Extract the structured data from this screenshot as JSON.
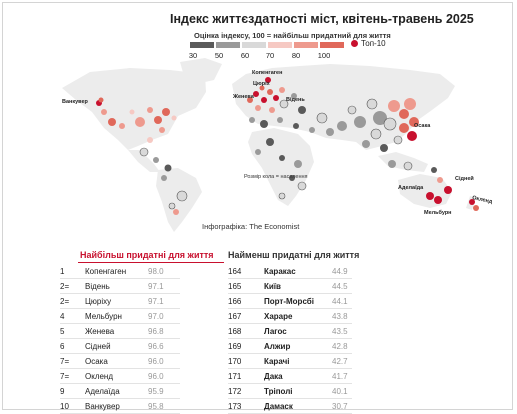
{
  "header": {
    "title": "Індекс життєздатності міст, квітень-травень 2025"
  },
  "legend": {
    "title": "Оцінка індексу, 100 = найбільш придатний для життя",
    "ticks": [
      "30",
      "50",
      "60",
      "70",
      "80",
      "100"
    ],
    "colors": [
      "#5a5a5a",
      "#9a9a9a",
      "#d9d9d9",
      "#f6c9c3",
      "#ee9a8e",
      "#e0685a"
    ],
    "top10_label": "Топ-10",
    "top10_color": "#c8102e"
  },
  "map": {
    "land_color": "#efefef",
    "labels": {
      "vancouver": "Ванкувер",
      "copenhagen": "Копенгаген",
      "zurich": "Цюріх",
      "geneva": "Женева",
      "vienna": "Відень",
      "osaka": "Осака",
      "sydney": "Сідней",
      "adelaide": "Аделаїда",
      "melbourne": "Мельбурн",
      "auckland": "Окленд"
    },
    "size_note": "Розмір кола = населення"
  },
  "credit": "Інфографіка: The Economist",
  "rankings": {
    "best_title": "Найбільш придатні для життя",
    "worst_title": "Найменш придатні для життя",
    "best": [
      {
        "rank": "1",
        "city": "Копенгаген",
        "score": "98.0"
      },
      {
        "rank": "2=",
        "city": "Відень",
        "score": "97.1"
      },
      {
        "rank": "2=",
        "city": "Цюріху",
        "score": "97.1"
      },
      {
        "rank": "4",
        "city": "Мельбурн",
        "score": "97.0"
      },
      {
        "rank": "5",
        "city": "Женева",
        "score": "96.8"
      },
      {
        "rank": "6",
        "city": "Сідней",
        "score": "96.6"
      },
      {
        "rank": "7=",
        "city": "Осака",
        "score": "96.0"
      },
      {
        "rank": "7=",
        "city": "Окленд",
        "score": "96.0"
      },
      {
        "rank": "9",
        "city": "Аделаїда",
        "score": "95.9"
      },
      {
        "rank": "10",
        "city": "Ванкувер",
        "score": "95.8"
      }
    ],
    "worst": [
      {
        "rank": "164",
        "city": "Каракас",
        "score": "44.9"
      },
      {
        "rank": "165",
        "city": "Київ",
        "score": "44.5"
      },
      {
        "rank": "166",
        "city": "Порт-Морсбі",
        "score": "44.1"
      },
      {
        "rank": "167",
        "city": "Хараре",
        "score": "43.8"
      },
      {
        "rank": "168",
        "city": "Лагос",
        "score": "43.5"
      },
      {
        "rank": "169",
        "city": "Алжир",
        "score": "42.8"
      },
      {
        "rank": "170",
        "city": "Карачі",
        "score": "42.7"
      },
      {
        "rank": "171",
        "city": "Дака",
        "score": "41.7"
      },
      {
        "rank": "172",
        "city": "Тріполі",
        "score": "40.1"
      },
      {
        "rank": "173",
        "city": "Дамаск",
        "score": "30.7"
      }
    ]
  }
}
